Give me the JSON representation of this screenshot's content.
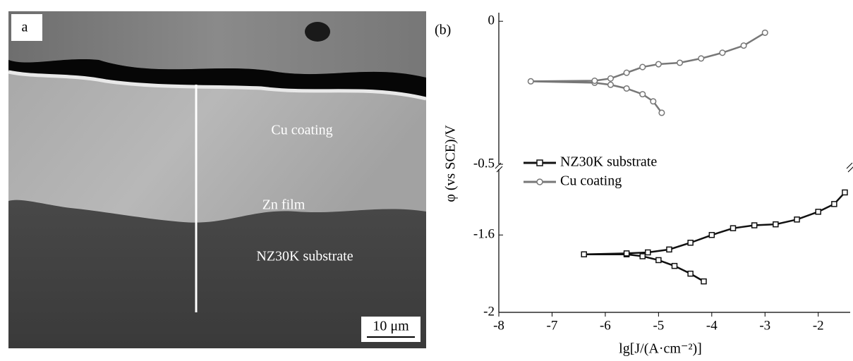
{
  "image_panel": {
    "label": "a",
    "annotations": [
      "Cu coating",
      "Zn film",
      "NZ30K substrate"
    ],
    "scale_bar": "10 μm"
  },
  "chart_data": [
    {
      "type": "line",
      "panel_label": "(b)",
      "ylabel": "φ (vs SCE)/V",
      "xlim": [
        -8,
        -1.4
      ],
      "ylim": [
        -0.5,
        0.03
      ],
      "yticks": [
        0,
        -0.5
      ],
      "series": [
        {
          "name": "Cu coating",
          "color": "#777777",
          "marker": "circle",
          "x": [
            -4.94,
            -5.1,
            -5.3,
            -5.6,
            -5.9,
            -6.2,
            -7.4,
            -6.2,
            -5.9,
            -5.6,
            -5.3,
            -5.0,
            -4.6,
            -4.2,
            -3.8,
            -3.4,
            -3.0
          ],
          "values": [
            -0.32,
            -0.28,
            -0.255,
            -0.235,
            -0.222,
            -0.215,
            -0.21,
            -0.208,
            -0.2,
            -0.18,
            -0.16,
            -0.15,
            -0.145,
            -0.13,
            -0.11,
            -0.085,
            -0.04
          ]
        }
      ]
    },
    {
      "type": "line",
      "xlabel": "lg[J/(A·cm⁻²)]",
      "xlim": [
        -8,
        -1.4
      ],
      "xticks": [
        -8,
        -7,
        -6,
        -5,
        -4,
        -3,
        -2
      ],
      "ylim": [
        -2.0,
        -1.26
      ],
      "yticks": [
        -1.6,
        -2.0
      ],
      "series": [
        {
          "name": "NZ30K substrate",
          "color": "#111111",
          "marker": "square",
          "x": [
            -4.15,
            -4.4,
            -4.7,
            -5.0,
            -5.3,
            -5.6,
            -6.4,
            -5.6,
            -5.2,
            -4.8,
            -4.4,
            -4.0,
            -3.6,
            -3.2,
            -2.8,
            -2.4,
            -2.0,
            -1.7,
            -1.5
          ],
          "values": [
            -1.84,
            -1.8,
            -1.76,
            -1.73,
            -1.71,
            -1.7,
            -1.7,
            -1.695,
            -1.69,
            -1.675,
            -1.64,
            -1.6,
            -1.565,
            -1.55,
            -1.545,
            -1.52,
            -1.48,
            -1.44,
            -1.38
          ]
        }
      ]
    }
  ]
}
